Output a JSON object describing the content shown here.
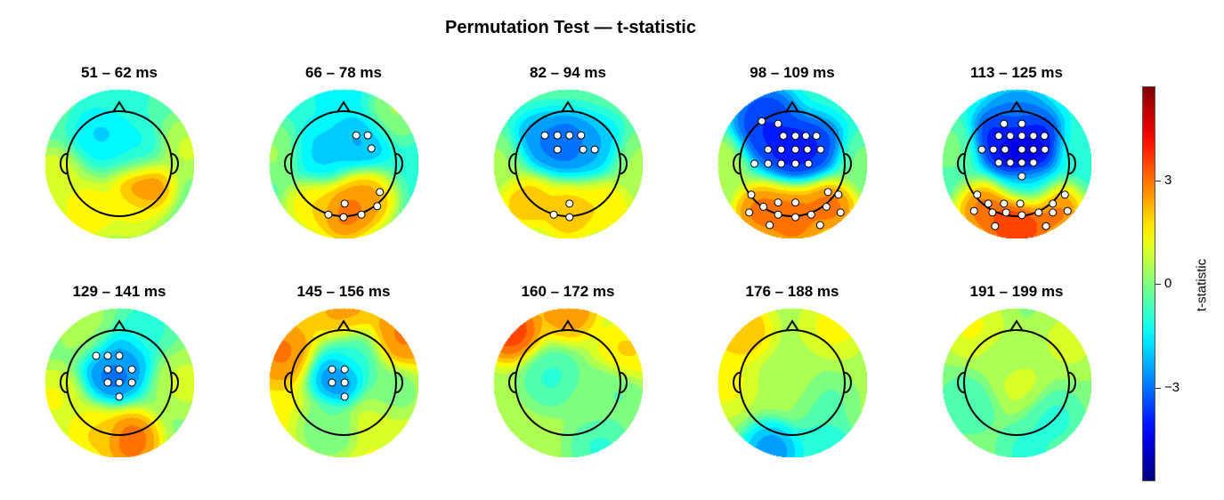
{
  "chart_data": {
    "type": "heatmap",
    "subtype": "scalp-topography",
    "title": "Permutation Test — t-statistic",
    "colormap": "jet",
    "clim": [
      -5.7,
      5.7
    ],
    "colorbar": {
      "label": "t-statistic",
      "ticks": [
        3,
        0,
        -3
      ],
      "tick_labels": [
        "3",
        "0",
        "−3"
      ],
      "position": "right"
    },
    "maps": [
      {
        "label": "51 – 62 ms",
        "bg": -0.5,
        "field": [
          [
            0.45,
            -0.4,
            3.5
          ],
          [
            0.2,
            -0.9,
            1.5
          ],
          [
            -0.6,
            -0.9,
            2
          ],
          [
            -0.3,
            0.6,
            -2
          ],
          [
            0.3,
            0.2,
            -1.5
          ],
          [
            -1.3,
            -0.3,
            1.5
          ],
          [
            1.3,
            0.3,
            1
          ],
          [
            0,
            1.3,
            -1
          ]
        ],
        "significant_sensors": []
      },
      {
        "label": "66 – 78 ms",
        "bg": -1,
        "field": [
          [
            0.3,
            0.5,
            -2.5
          ],
          [
            -0.5,
            0.2,
            -2
          ],
          [
            0.4,
            -0.7,
            3
          ],
          [
            0,
            -0.95,
            3.5
          ],
          [
            -0.6,
            -0.8,
            2
          ],
          [
            -1.3,
            0.2,
            0.5
          ],
          [
            0.9,
            1,
            0.5
          ],
          [
            0,
            1.3,
            -1.5
          ]
        ],
        "significant_sensors": [
          [
            0.24,
            0.54
          ],
          [
            0.46,
            0.54
          ],
          [
            0.53,
            0.29
          ],
          [
            0.69,
            -0.54
          ],
          [
            0.02,
            -0.76
          ],
          [
            -0.29,
            -0.97
          ],
          [
            0,
            -1.02
          ],
          [
            0.34,
            -0.97
          ],
          [
            0.64,
            -0.81
          ]
        ]
      },
      {
        "label": "82 – 94 ms",
        "bg": -0.5,
        "field": [
          [
            0,
            0.4,
            -3.5
          ],
          [
            -0.5,
            0.4,
            -3
          ],
          [
            0.5,
            0.3,
            -2.5
          ],
          [
            0,
            -0.95,
            2.5
          ],
          [
            -0.8,
            -0.7,
            2.5
          ],
          [
            0.7,
            -0.8,
            2
          ],
          [
            -1.3,
            0,
            0.5
          ],
          [
            1.3,
            0,
            0.5
          ]
        ],
        "significant_sensors": [
          [
            -0.44,
            0.54
          ],
          [
            -0.2,
            0.54
          ],
          [
            0.03,
            0.54
          ],
          [
            0.25,
            0.54
          ],
          [
            -0.2,
            0.27
          ],
          [
            0.29,
            0.27
          ],
          [
            0.51,
            0.27
          ],
          [
            0.03,
            -0.76
          ],
          [
            -0.27,
            -0.97
          ],
          [
            0.03,
            -1.02
          ]
        ]
      },
      {
        "label": "98 – 109 ms",
        "bg": -1,
        "field": [
          [
            0,
            0.3,
            -4.5
          ],
          [
            -0.5,
            0.5,
            -4
          ],
          [
            0.4,
            0.3,
            -4
          ],
          [
            -0.5,
            0.9,
            -4
          ],
          [
            -0.6,
            -0.9,
            3.5
          ],
          [
            0,
            -1,
            3.5
          ],
          [
            0.7,
            -0.8,
            3.5
          ],
          [
            0,
            -1.35,
            3
          ],
          [
            -1.35,
            0,
            1
          ],
          [
            1.35,
            0,
            0
          ]
        ],
        "significant_sensors": [
          [
            -0.58,
            0.81
          ],
          [
            -0.27,
            0.76
          ],
          [
            -0.17,
            0.53
          ],
          [
            0.06,
            0.53
          ],
          [
            0.26,
            0.53
          ],
          [
            0.46,
            0.53
          ],
          [
            -0.46,
            0.27
          ],
          [
            -0.21,
            0.27
          ],
          [
            0.06,
            0.27
          ],
          [
            0.29,
            0.27
          ],
          [
            0.54,
            0.27
          ],
          [
            -0.72,
            0
          ],
          [
            -0.46,
            0
          ],
          [
            -0.21,
            0
          ],
          [
            0.06,
            0
          ],
          [
            0.31,
            0
          ],
          [
            -0.78,
            -0.59
          ],
          [
            0.68,
            -0.54
          ],
          [
            0.88,
            -0.59
          ],
          [
            -0.27,
            -0.74
          ],
          [
            0.06,
            -0.74
          ],
          [
            -0.55,
            -0.82
          ],
          [
            0.65,
            -0.82
          ],
          [
            -0.82,
            -0.93
          ],
          [
            0.92,
            -0.93
          ],
          [
            -0.27,
            -0.97
          ],
          [
            0.06,
            -1.02
          ],
          [
            0.36,
            -0.97
          ],
          [
            -0.43,
            -1.17
          ],
          [
            0.53,
            -1.17
          ]
        ]
      },
      {
        "label": "113 – 125 ms",
        "bg": -1,
        "field": [
          [
            0.1,
            0.2,
            -5.5
          ],
          [
            -0.3,
            0.5,
            -4.5
          ],
          [
            0.3,
            0.5,
            -4.5
          ],
          [
            0,
            0.9,
            -3
          ],
          [
            -1.3,
            0.3,
            0
          ],
          [
            1.3,
            0.3,
            -1
          ],
          [
            0,
            -1,
            4.5
          ],
          [
            -0.6,
            -0.9,
            3.5
          ],
          [
            0.7,
            -0.9,
            3.5
          ],
          [
            0,
            -1.35,
            4
          ],
          [
            0.2,
            -0.4,
            -2
          ]
        ],
        "significant_sensors": [
          [
            -0.24,
            0.76
          ],
          [
            0.1,
            0.76
          ],
          [
            -0.34,
            0.53
          ],
          [
            -0.12,
            0.53
          ],
          [
            0.1,
            0.53
          ],
          [
            0.32,
            0.53
          ],
          [
            0.53,
            0.53
          ],
          [
            -0.66,
            0.27
          ],
          [
            -0.44,
            0.27
          ],
          [
            -0.22,
            0.27
          ],
          [
            0.1,
            0.27
          ],
          [
            0.32,
            0.27
          ],
          [
            0.54,
            0.27
          ],
          [
            -0.34,
            0.02
          ],
          [
            -0.12,
            0.02
          ],
          [
            0.1,
            0.02
          ],
          [
            0.32,
            0.02
          ],
          [
            0.1,
            -0.24
          ],
          [
            -0.75,
            -0.59
          ],
          [
            0.92,
            -0.59
          ],
          [
            -0.54,
            -0.76
          ],
          [
            -0.24,
            -0.76
          ],
          [
            0.07,
            -0.76
          ],
          [
            0.69,
            -0.76
          ],
          [
            -0.81,
            -0.9
          ],
          [
            -0.46,
            -0.93
          ],
          [
            -0.2,
            -0.93
          ],
          [
            0.1,
            -0.98
          ],
          [
            0.42,
            -0.93
          ],
          [
            0.69,
            -0.93
          ],
          [
            0.97,
            -0.9
          ],
          [
            -0.41,
            -1.19
          ],
          [
            0.56,
            -1.19
          ]
        ]
      },
      {
        "label": "129 – 141 ms",
        "bg": 0,
        "field": [
          [
            -0.1,
            0.2,
            -3.5
          ],
          [
            0,
            0.5,
            -2.5
          ],
          [
            0.2,
            -1.1,
            3.5
          ],
          [
            -0.5,
            -1,
            2
          ],
          [
            -1.3,
            -0.3,
            1.5
          ],
          [
            1.3,
            0,
            1
          ],
          [
            0.5,
            1.1,
            -1
          ],
          [
            -0.6,
            1,
            0.5
          ]
        ],
        "significant_sensors": [
          [
            -0.44,
            0.51
          ],
          [
            -0.22,
            0.51
          ],
          [
            0,
            0.51
          ],
          [
            -0.22,
            0.25
          ],
          [
            0,
            0.25
          ],
          [
            0.24,
            0.25
          ],
          [
            -0.22,
            0
          ],
          [
            0,
            0
          ],
          [
            0.24,
            0
          ],
          [
            0,
            -0.27
          ]
        ]
      },
      {
        "label": "145 – 156 ms",
        "bg": 1.5,
        "field": [
          [
            -0.1,
            0.1,
            -3.5
          ],
          [
            0.2,
            0.5,
            -1
          ],
          [
            -1.2,
            0.6,
            3
          ],
          [
            1.1,
            0.9,
            3
          ],
          [
            0,
            1.4,
            2.5
          ],
          [
            0.7,
            -0.7,
            1
          ],
          [
            -0.3,
            -0.9,
            -0.5
          ],
          [
            0.9,
            -0.2,
            -0.5
          ]
        ],
        "significant_sensors": [
          [
            -0.22,
            0.25
          ],
          [
            0.02,
            0.25
          ],
          [
            -0.22,
            0
          ],
          [
            0.02,
            0
          ],
          [
            0.02,
            -0.27
          ]
        ]
      },
      {
        "label": "160 – 172 ms",
        "bg": 0.5,
        "field": [
          [
            -1.1,
            1.0,
            4
          ],
          [
            0,
            1.4,
            3
          ],
          [
            -0.3,
            0.1,
            -1
          ],
          [
            0.5,
            -0.3,
            0
          ],
          [
            0.6,
            -1.2,
            -1
          ],
          [
            1.1,
            0.6,
            2
          ],
          [
            0.8,
            -0.2,
            -0.5
          ]
        ],
        "significant_sensors": []
      },
      {
        "label": "176 – 188 ms",
        "bg": 0.5,
        "field": [
          [
            -1.0,
            1.0,
            2.5
          ],
          [
            0.8,
            1.1,
            1.5
          ],
          [
            -0.4,
            -1.3,
            -3
          ],
          [
            0.6,
            -1.2,
            -1.5
          ],
          [
            0,
            0,
            0.5
          ],
          [
            0.6,
            -0.4,
            -0.5
          ],
          [
            -1.3,
            0,
            1.5
          ]
        ],
        "significant_sensors": []
      },
      {
        "label": "191 – 199 ms",
        "bg": 0.2,
        "field": [
          [
            0,
            0,
            1
          ],
          [
            -0.9,
            -0.4,
            -0.8
          ],
          [
            0.7,
            -0.7,
            -1
          ],
          [
            0.2,
            -1.3,
            -1
          ],
          [
            -0.8,
            1,
            1.5
          ],
          [
            1,
            0.8,
            1
          ],
          [
            -0.3,
            0.5,
            0.5
          ]
        ],
        "significant_sensors": []
      }
    ]
  }
}
